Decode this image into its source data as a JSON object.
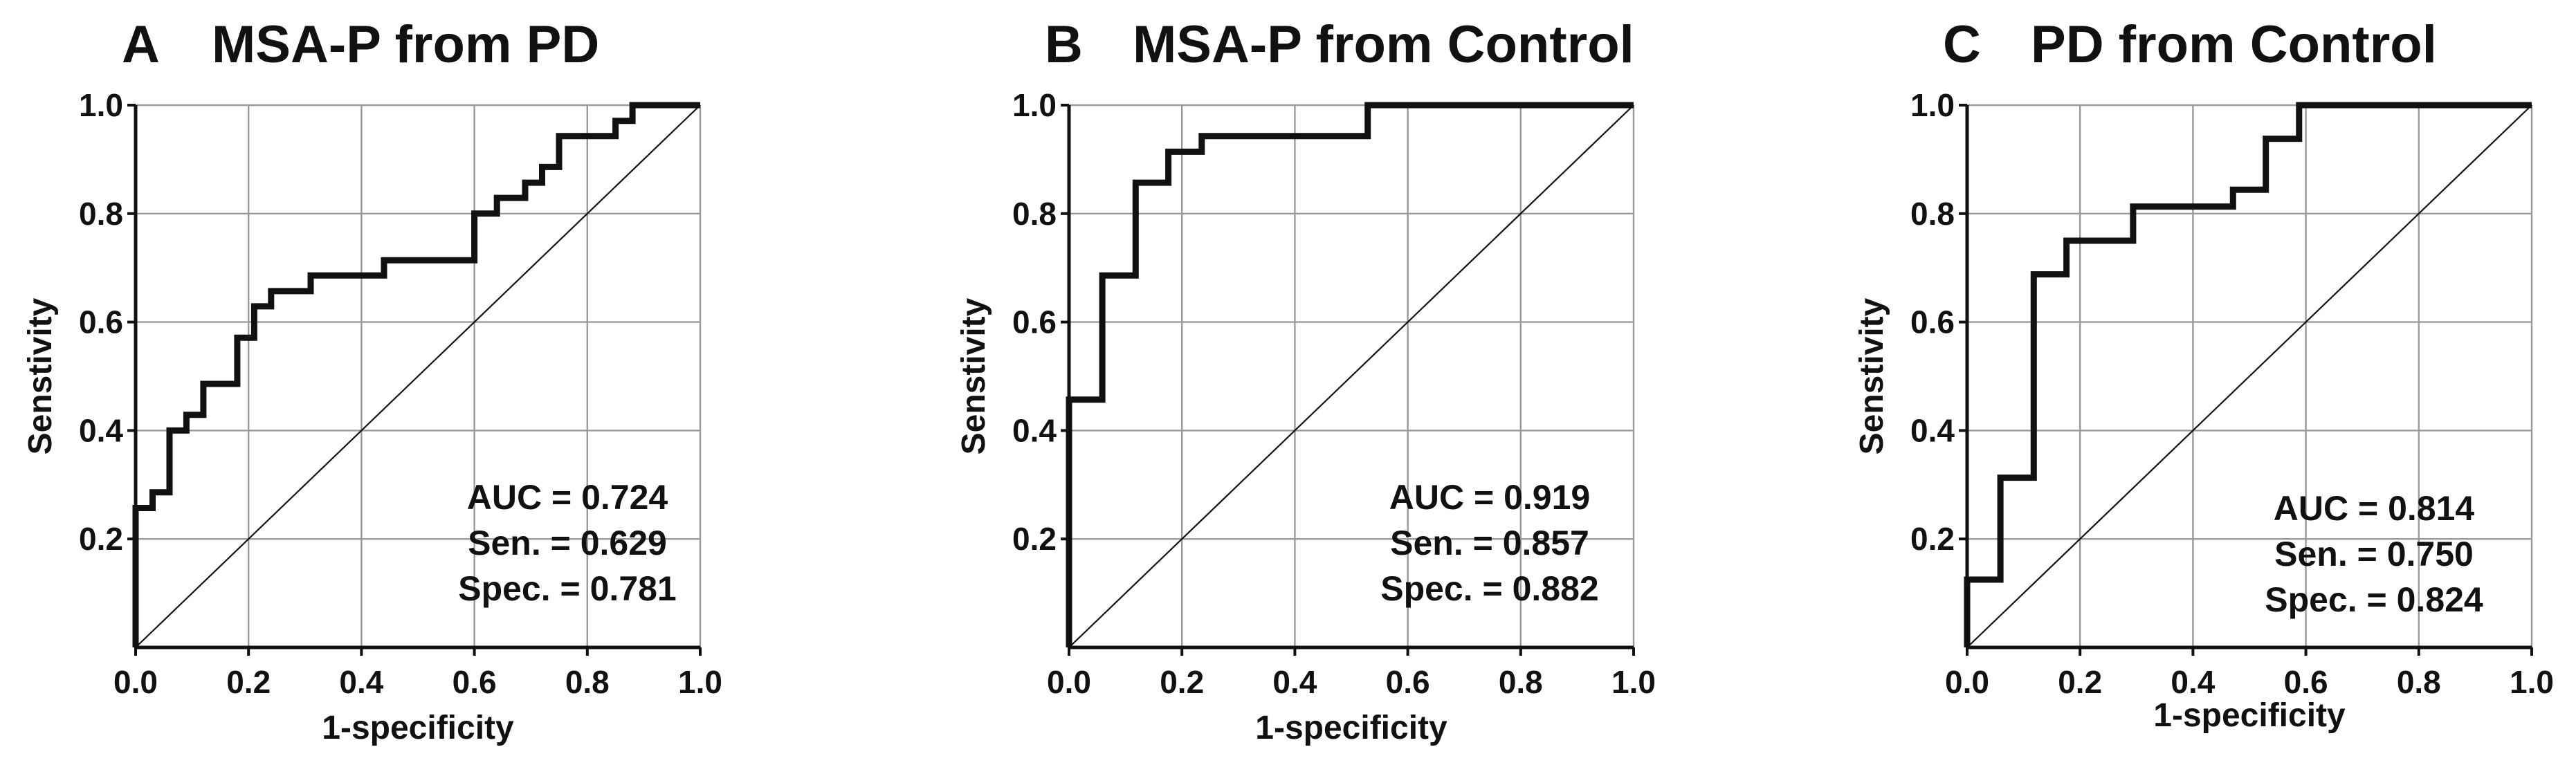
{
  "chart_data": [
    {
      "type": "line",
      "panel": "A",
      "title": "MSA-P from PD",
      "xlabel": "1-specificity",
      "ylabel": "Senstivity",
      "xlim": [
        0.0,
        1.0
      ],
      "ylim": [
        0.0,
        1.0
      ],
      "xticks": [
        "0.0",
        "0.2",
        "0.4",
        "0.6",
        "0.8",
        "1.0"
      ],
      "yticks": [
        "0.2",
        "0.4",
        "0.6",
        "0.8",
        "1.0"
      ],
      "grid": true,
      "series": [
        {
          "name": "ROC",
          "x": [
            0,
            0,
            0.03,
            0.03,
            0.06,
            0.06,
            0.09,
            0.09,
            0.12,
            0.12,
            0.18,
            0.18,
            0.21,
            0.21,
            0.24,
            0.24,
            0.27,
            0.27,
            0.31,
            0.31,
            0.44,
            0.44,
            0.6,
            0.6,
            0.64,
            0.64,
            0.69,
            0.69,
            0.72,
            0.72,
            0.75,
            0.75,
            0.85,
            0.85,
            0.88,
            0.88,
            1.0
          ],
          "y": [
            0,
            0.257,
            0.257,
            0.286,
            0.286,
            0.4,
            0.4,
            0.429,
            0.429,
            0.486,
            0.486,
            0.571,
            0.571,
            0.629,
            0.629,
            0.657,
            0.657,
            0.657,
            0.657,
            0.686,
            0.686,
            0.714,
            0.714,
            0.8,
            0.8,
            0.829,
            0.829,
            0.857,
            0.857,
            0.886,
            0.886,
            0.943,
            0.943,
            0.971,
            0.971,
            1.0,
            1.0
          ]
        },
        {
          "name": "Reference",
          "x": [
            0,
            1
          ],
          "y": [
            0,
            1
          ]
        }
      ],
      "annotations": [
        "AUC = 0.724",
        "Sen. = 0.629",
        "Spec. = 0.781"
      ]
    },
    {
      "type": "line",
      "panel": "B",
      "title": "MSA-P from Control",
      "xlabel": "1-specificity",
      "ylabel": "Senstivity",
      "xlim": [
        0.0,
        1.0
      ],
      "ylim": [
        0.0,
        1.0
      ],
      "xticks": [
        "0.0",
        "0.2",
        "0.4",
        "0.6",
        "0.8",
        "1.0"
      ],
      "yticks": [
        "0.2",
        "0.4",
        "0.6",
        "0.8",
        "1.0"
      ],
      "grid": true,
      "series": [
        {
          "name": "ROC",
          "x": [
            0,
            0,
            0.059,
            0.059,
            0.118,
            0.118,
            0.176,
            0.176,
            0.235,
            0.235,
            0.529,
            0.529,
            1.0
          ],
          "y": [
            0,
            0.457,
            0.457,
            0.686,
            0.686,
            0.857,
            0.857,
            0.914,
            0.914,
            0.943,
            0.943,
            1.0,
            1.0
          ]
        },
        {
          "name": "Reference",
          "x": [
            0,
            1
          ],
          "y": [
            0,
            1
          ]
        }
      ],
      "annotations": [
        "AUC = 0.919",
        "Sen. = 0.857",
        "Spec. = 0.882"
      ]
    },
    {
      "type": "line",
      "panel": "C",
      "title": "PD from Control",
      "xlabel": "1-specificity",
      "ylabel": "Senstivity",
      "xlim": [
        0.0,
        1.0
      ],
      "ylim": [
        0.0,
        1.0
      ],
      "xticks": [
        "0.0",
        "0.2",
        "0.4",
        "0.6",
        "0.8",
        "1.0"
      ],
      "yticks": [
        "0.2",
        "0.4",
        "0.6",
        "0.8",
        "1.0"
      ],
      "grid": true,
      "series": [
        {
          "name": "ROC",
          "x": [
            0,
            0,
            0.059,
            0.059,
            0.118,
            0.118,
            0.176,
            0.176,
            0.294,
            0.294,
            0.471,
            0.471,
            0.529,
            0.529,
            0.588,
            0.588,
            1.0
          ],
          "y": [
            0,
            0.125,
            0.125,
            0.313,
            0.313,
            0.688,
            0.688,
            0.75,
            0.75,
            0.813,
            0.813,
            0.844,
            0.844,
            0.938,
            0.938,
            1.0,
            1.0
          ]
        },
        {
          "name": "Reference",
          "x": [
            0,
            1
          ],
          "y": [
            0,
            1
          ]
        }
      ],
      "annotations": [
        "AUC = 0.814",
        "Sen. = 0.750",
        "Spec. = 0.824"
      ]
    }
  ]
}
